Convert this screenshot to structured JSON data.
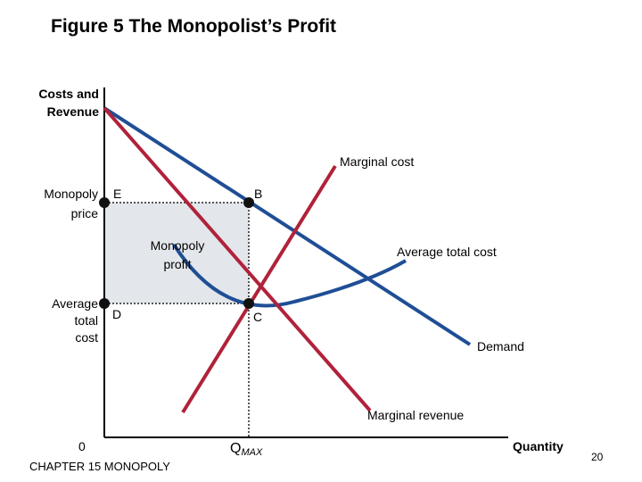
{
  "title": "Figure 5 The Monopolist’s Profit",
  "footer": "CHAPTER 15 MONOPOLY",
  "page_number": "20",
  "colors": {
    "blue": "#1f4e96",
    "red": "#b0223a",
    "profit_fill": "#e3e6ea",
    "dots": "#111111"
  },
  "axes": {
    "y_label_line1": "Costs and",
    "y_label_line2": "Revenue",
    "x_label": "Quantity",
    "origin": "0",
    "qmax_main": "Q",
    "qmax_sub": "MAX"
  },
  "left_labels": {
    "monopoly_price_1": "Monopoly",
    "monopoly_price_2": "price",
    "avg_total_cost_1": "Average",
    "avg_total_cost_2": "total",
    "avg_total_cost_3": "cost"
  },
  "points": {
    "E": "E",
    "B": "B",
    "D": "D",
    "C": "C"
  },
  "curves": {
    "marginal_cost": "Marginal cost",
    "average_total_cost": "Average total cost",
    "demand": "Demand",
    "marginal_revenue": "Marginal revenue"
  },
  "profit_label_1": "Monopoly",
  "profit_label_2": "profit"
}
